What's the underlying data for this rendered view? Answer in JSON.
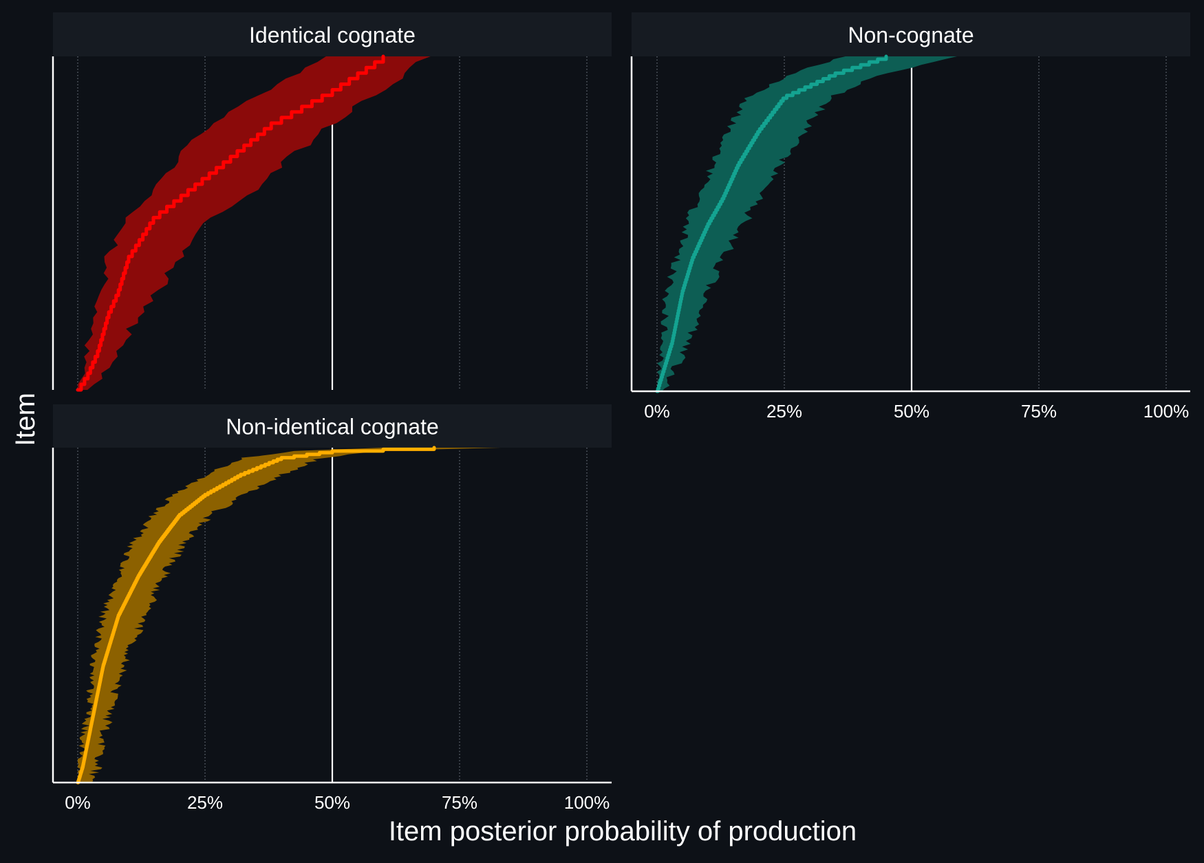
{
  "chart_data": {
    "type": "area",
    "xlabel": "Item posterior probability of production",
    "ylabel": "Item",
    "xlim": [
      0,
      1
    ],
    "x_ticks": [
      0,
      0.25,
      0.5,
      0.75,
      1.0
    ],
    "x_tick_labels": [
      "0%",
      "25%",
      "50%",
      "75%",
      "100%"
    ],
    "grid": "vertical dotted at 0%, 25%, 75%, 100%; solid at 50%",
    "panels": [
      {
        "title": "Identical cognate",
        "color": "#ff0000",
        "band_color": "#8b0a0a",
        "n_items": 60,
        "median": [
          [
            0.0,
            0.0
          ],
          [
            0.02,
            0.05
          ],
          [
            0.04,
            0.12
          ],
          [
            0.06,
            0.23
          ],
          [
            0.08,
            0.3
          ],
          [
            0.1,
            0.4
          ],
          [
            0.15,
            0.52
          ],
          [
            0.2,
            0.58
          ],
          [
            0.3,
            0.7
          ],
          [
            0.38,
            0.8
          ],
          [
            0.5,
            0.9
          ],
          [
            0.6,
            1.0
          ]
        ],
        "lower": [
          [
            0.0,
            0.0
          ],
          [
            0.01,
            0.05
          ],
          [
            0.02,
            0.12
          ],
          [
            0.03,
            0.23
          ],
          [
            0.05,
            0.3
          ],
          [
            0.06,
            0.4
          ],
          [
            0.1,
            0.52
          ],
          [
            0.14,
            0.58
          ],
          [
            0.2,
            0.7
          ],
          [
            0.26,
            0.8
          ],
          [
            0.38,
            0.9
          ],
          [
            0.48,
            1.0
          ]
        ],
        "upper": [
          [
            0.03,
            0.0
          ],
          [
            0.05,
            0.05
          ],
          [
            0.08,
            0.12
          ],
          [
            0.12,
            0.23
          ],
          [
            0.16,
            0.3
          ],
          [
            0.2,
            0.4
          ],
          [
            0.26,
            0.52
          ],
          [
            0.33,
            0.58
          ],
          [
            0.42,
            0.7
          ],
          [
            0.5,
            0.8
          ],
          [
            0.6,
            0.9
          ],
          [
            0.69,
            1.0
          ]
        ]
      },
      {
        "title": "Non-cognate",
        "color": "#14a391",
        "band_color": "#0d5e54",
        "n_items": 120,
        "median": [
          [
            0.0,
            0.0
          ],
          [
            0.01,
            0.05
          ],
          [
            0.03,
            0.15
          ],
          [
            0.05,
            0.3
          ],
          [
            0.07,
            0.4
          ],
          [
            0.1,
            0.5
          ],
          [
            0.13,
            0.58
          ],
          [
            0.16,
            0.68
          ],
          [
            0.2,
            0.78
          ],
          [
            0.25,
            0.88
          ],
          [
            0.35,
            0.95
          ],
          [
            0.45,
            1.0
          ]
        ],
        "lower": [
          [
            0.0,
            0.0
          ],
          [
            0.0,
            0.05
          ],
          [
            0.01,
            0.15
          ],
          [
            0.02,
            0.3
          ],
          [
            0.04,
            0.4
          ],
          [
            0.06,
            0.5
          ],
          [
            0.08,
            0.58
          ],
          [
            0.11,
            0.68
          ],
          [
            0.14,
            0.78
          ],
          [
            0.18,
            0.88
          ],
          [
            0.27,
            0.95
          ],
          [
            0.37,
            1.0
          ]
        ],
        "upper": [
          [
            0.02,
            0.0
          ],
          [
            0.03,
            0.05
          ],
          [
            0.06,
            0.15
          ],
          [
            0.1,
            0.3
          ],
          [
            0.13,
            0.4
          ],
          [
            0.17,
            0.5
          ],
          [
            0.2,
            0.58
          ],
          [
            0.24,
            0.68
          ],
          [
            0.29,
            0.78
          ],
          [
            0.34,
            0.88
          ],
          [
            0.45,
            0.95
          ],
          [
            0.58,
            1.0
          ]
        ]
      },
      {
        "title": "Non-identical cognate",
        "color": "#ffae00",
        "band_color": "#8c6100",
        "n_items": 200,
        "median": [
          [
            0.0,
            0.0
          ],
          [
            0.01,
            0.05
          ],
          [
            0.03,
            0.2
          ],
          [
            0.05,
            0.35
          ],
          [
            0.08,
            0.5
          ],
          [
            0.12,
            0.62
          ],
          [
            0.16,
            0.72
          ],
          [
            0.2,
            0.8
          ],
          [
            0.25,
            0.86
          ],
          [
            0.32,
            0.92
          ],
          [
            0.4,
            0.97
          ],
          [
            0.5,
            0.99
          ],
          [
            0.7,
            1.0
          ]
        ],
        "lower": [
          [
            0.0,
            0.0
          ],
          [
            0.0,
            0.05
          ],
          [
            0.02,
            0.2
          ],
          [
            0.03,
            0.35
          ],
          [
            0.05,
            0.5
          ],
          [
            0.08,
            0.62
          ],
          [
            0.11,
            0.72
          ],
          [
            0.15,
            0.8
          ],
          [
            0.19,
            0.86
          ],
          [
            0.25,
            0.92
          ],
          [
            0.33,
            0.97
          ],
          [
            0.42,
            0.99
          ],
          [
            0.6,
            1.0
          ]
        ],
        "upper": [
          [
            0.02,
            0.0
          ],
          [
            0.04,
            0.05
          ],
          [
            0.06,
            0.2
          ],
          [
            0.09,
            0.35
          ],
          [
            0.13,
            0.5
          ],
          [
            0.17,
            0.62
          ],
          [
            0.21,
            0.72
          ],
          [
            0.26,
            0.8
          ],
          [
            0.33,
            0.86
          ],
          [
            0.4,
            0.92
          ],
          [
            0.48,
            0.97
          ],
          [
            0.58,
            0.99
          ],
          [
            0.84,
            1.0
          ]
        ]
      }
    ]
  },
  "colors": {
    "background": "#0d1117",
    "strip": "#161b22",
    "axis": "#ffffff",
    "text": "#ffffff"
  }
}
